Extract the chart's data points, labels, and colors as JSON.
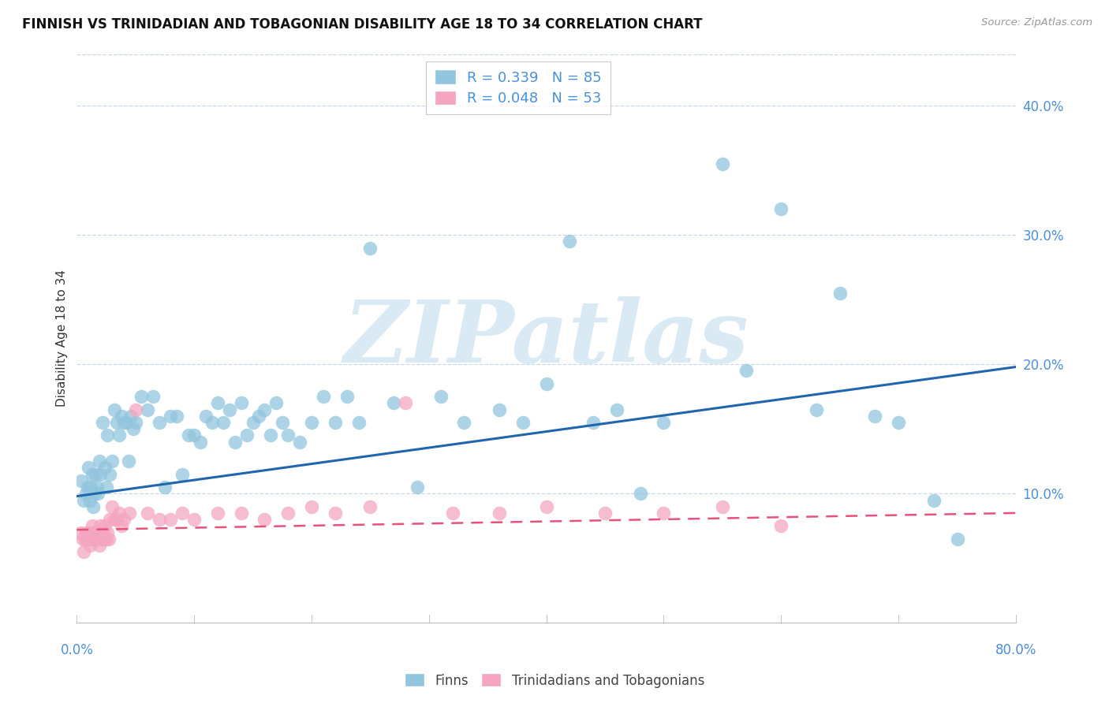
{
  "title": "FINNISH VS TRINIDADIAN AND TOBAGONIAN DISABILITY AGE 18 TO 34 CORRELATION CHART",
  "source": "Source: ZipAtlas.com",
  "ylabel": "Disability Age 18 to 34",
  "xlim": [
    0.0,
    0.8
  ],
  "ylim": [
    0.0,
    0.44
  ],
  "yticks": [
    0.1,
    0.2,
    0.3,
    0.4
  ],
  "ytick_labels": [
    "10.0%",
    "20.0%",
    "30.0%",
    "40.0%"
  ],
  "xtick_left_label": "0.0%",
  "xtick_right_label": "80.0%",
  "legend_label1": "R = 0.339   N = 85",
  "legend_label2": "R = 0.048   N = 53",
  "legend_group1": "Finns",
  "legend_group2": "Trinidadians and Tobagonians",
  "color_finns": "#92c5de",
  "color_tt": "#f4a6c0",
  "color_finns_line": "#2166ac",
  "color_tt_line": "#e8527a",
  "background_color": "#ffffff",
  "grid_color": "#c8d8e8",
  "tick_color": "#4a90d9",
  "watermark_color": "#daeaf5",
  "finns_trend_x": [
    0.0,
    0.8
  ],
  "finns_trend_y": [
    0.098,
    0.198
  ],
  "tt_trend_x": [
    0.0,
    0.8
  ],
  "tt_trend_y": [
    0.072,
    0.085
  ],
  "finns_x": [
    0.004,
    0.006,
    0.008,
    0.009,
    0.01,
    0.011,
    0.012,
    0.013,
    0.014,
    0.015,
    0.016,
    0.017,
    0.018,
    0.019,
    0.02,
    0.022,
    0.024,
    0.025,
    0.026,
    0.028,
    0.03,
    0.032,
    0.034,
    0.036,
    0.038,
    0.04,
    0.042,
    0.044,
    0.046,
    0.048,
    0.05,
    0.055,
    0.06,
    0.065,
    0.07,
    0.075,
    0.08,
    0.085,
    0.09,
    0.095,
    0.1,
    0.105,
    0.11,
    0.115,
    0.12,
    0.125,
    0.13,
    0.135,
    0.14,
    0.145,
    0.15,
    0.155,
    0.16,
    0.165,
    0.17,
    0.175,
    0.18,
    0.19,
    0.2,
    0.21,
    0.22,
    0.23,
    0.24,
    0.25,
    0.27,
    0.29,
    0.31,
    0.33,
    0.36,
    0.38,
    0.4,
    0.42,
    0.44,
    0.46,
    0.48,
    0.5,
    0.55,
    0.57,
    0.6,
    0.63,
    0.65,
    0.68,
    0.7,
    0.73,
    0.75
  ],
  "finns_y": [
    0.11,
    0.095,
    0.1,
    0.105,
    0.12,
    0.095,
    0.105,
    0.115,
    0.09,
    0.1,
    0.115,
    0.105,
    0.1,
    0.125,
    0.115,
    0.155,
    0.12,
    0.105,
    0.145,
    0.115,
    0.125,
    0.165,
    0.155,
    0.145,
    0.16,
    0.155,
    0.155,
    0.125,
    0.16,
    0.15,
    0.155,
    0.175,
    0.165,
    0.175,
    0.155,
    0.105,
    0.16,
    0.16,
    0.115,
    0.145,
    0.145,
    0.14,
    0.16,
    0.155,
    0.17,
    0.155,
    0.165,
    0.14,
    0.17,
    0.145,
    0.155,
    0.16,
    0.165,
    0.145,
    0.17,
    0.155,
    0.145,
    0.14,
    0.155,
    0.175,
    0.155,
    0.175,
    0.155,
    0.29,
    0.17,
    0.105,
    0.175,
    0.155,
    0.165,
    0.155,
    0.185,
    0.295,
    0.155,
    0.165,
    0.1,
    0.155,
    0.355,
    0.195,
    0.32,
    0.165,
    0.255,
    0.16,
    0.155,
    0.095,
    0.065
  ],
  "tt_x": [
    0.003,
    0.005,
    0.006,
    0.007,
    0.008,
    0.009,
    0.01,
    0.011,
    0.012,
    0.013,
    0.014,
    0.015,
    0.016,
    0.017,
    0.018,
    0.019,
    0.02,
    0.021,
    0.022,
    0.023,
    0.024,
    0.025,
    0.026,
    0.027,
    0.028,
    0.03,
    0.032,
    0.034,
    0.036,
    0.038,
    0.04,
    0.045,
    0.05,
    0.06,
    0.07,
    0.08,
    0.09,
    0.1,
    0.12,
    0.14,
    0.16,
    0.18,
    0.2,
    0.22,
    0.25,
    0.28,
    0.32,
    0.36,
    0.4,
    0.45,
    0.5,
    0.55,
    0.6
  ],
  "tt_y": [
    0.07,
    0.065,
    0.055,
    0.065,
    0.07,
    0.065,
    0.07,
    0.06,
    0.065,
    0.075,
    0.07,
    0.065,
    0.065,
    0.07,
    0.065,
    0.06,
    0.075,
    0.065,
    0.07,
    0.065,
    0.075,
    0.065,
    0.07,
    0.065,
    0.08,
    0.09,
    0.08,
    0.08,
    0.085,
    0.075,
    0.08,
    0.085,
    0.165,
    0.085,
    0.08,
    0.08,
    0.085,
    0.08,
    0.085,
    0.085,
    0.08,
    0.085,
    0.09,
    0.085,
    0.09,
    0.17,
    0.085,
    0.085,
    0.09,
    0.085,
    0.085,
    0.09,
    0.075
  ]
}
